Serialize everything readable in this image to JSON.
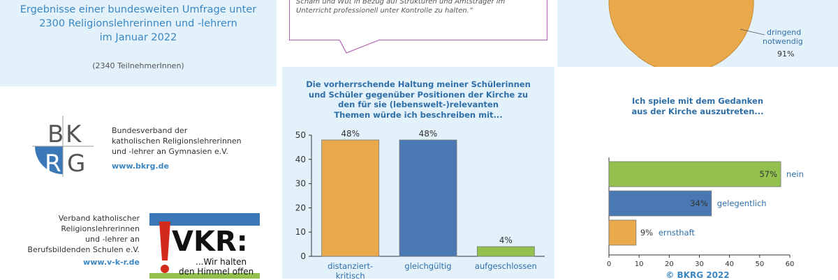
{
  "intro": {
    "line1": "Ergebnisse einer bundesweiten Umfrage unter",
    "line2": "2300 Religionslehrerinnen und -lehrern",
    "line3": "im Januar 2022",
    "participants": "(2340 TeilnehmerInnen)"
  },
  "quote": {
    "line1": "Scham und Wut in Bezug auf Strukturen und Amtsträger im",
    "line2": "Unterricht professionell unter Kontrolle zu halten.“"
  },
  "pie": {
    "label_line1": "dringend",
    "label_line2": "notwendig",
    "percent": "91%",
    "value": 91,
    "color": "#e9a94a"
  },
  "orgs": [
    {
      "logo_letters": [
        "B",
        "K",
        "R",
        "G"
      ],
      "lines": [
        "Bundesverband der",
        "katholischen Religionslehrerinnen",
        "und -lehrer an Gymnasien e.V."
      ],
      "link": "www.bkrg.de"
    },
    {
      "lines": [
        "Verband katholischer",
        "Religionslehrerinnen",
        "und -lehrer an",
        "Berufsbildenden Schulen e.V."
      ],
      "link": "www.v-k-r.de",
      "logo_text": "VKR:",
      "logo_slogan_1": "...Wir halten",
      "logo_slogan_2": "den Himmel offen"
    }
  ],
  "chart_data": [
    {
      "type": "bar",
      "title": "Die vorherrschende Haltung meiner Schülerinnen und Schüler gegenüber Positionen der Kirche zu den für sie (lebenswelt-)relevanten Themen würde ich beschreiben mit...",
      "title_lines": [
        "Die vorherrschende Haltung meiner Schülerinnen",
        "und Schüler gegenüber Positionen der Kirche zu",
        "den für sie (lebenswelt-)relevanten",
        "Themen würde ich beschreiben mit..."
      ],
      "categories": [
        "distanziert-kritisch",
        "gleichgültig",
        "aufgeschlossen"
      ],
      "category_labels": [
        "distanziert-",
        "gleichgültig",
        "aufgeschlossen"
      ],
      "category_label2": "kritisch",
      "values": [
        48,
        48,
        4
      ],
      "data_labels": [
        "48%",
        "48%",
        "4%"
      ],
      "colors": [
        "#eaa94b",
        "#4a78b3",
        "#93c04f"
      ],
      "ylim": [
        0,
        50
      ],
      "yticks": [
        "0",
        "10",
        "20",
        "30",
        "40",
        "50"
      ],
      "grid": false
    },
    {
      "type": "bar",
      "orientation": "horizontal",
      "title": "Ich spiele mit dem Gedanken aus der Kirche auszutreten...",
      "title_lines": [
        "Ich spiele mit dem Gedanken",
        "aus der Kirche auszutreten..."
      ],
      "categories": [
        "nein",
        "gelegentlich",
        "ernsthaft"
      ],
      "values": [
        57,
        34,
        9
      ],
      "data_labels": [
        "57%",
        "34%",
        "9%"
      ],
      "colors": [
        "#93c04f",
        "#4a78b3",
        "#eaa94b"
      ],
      "xlim": [
        0,
        60
      ],
      "xticks": [
        "0",
        "10",
        "20",
        "30",
        "40",
        "50",
        "60"
      ],
      "grid": false
    }
  ],
  "copyright": "© BKRG 2022"
}
